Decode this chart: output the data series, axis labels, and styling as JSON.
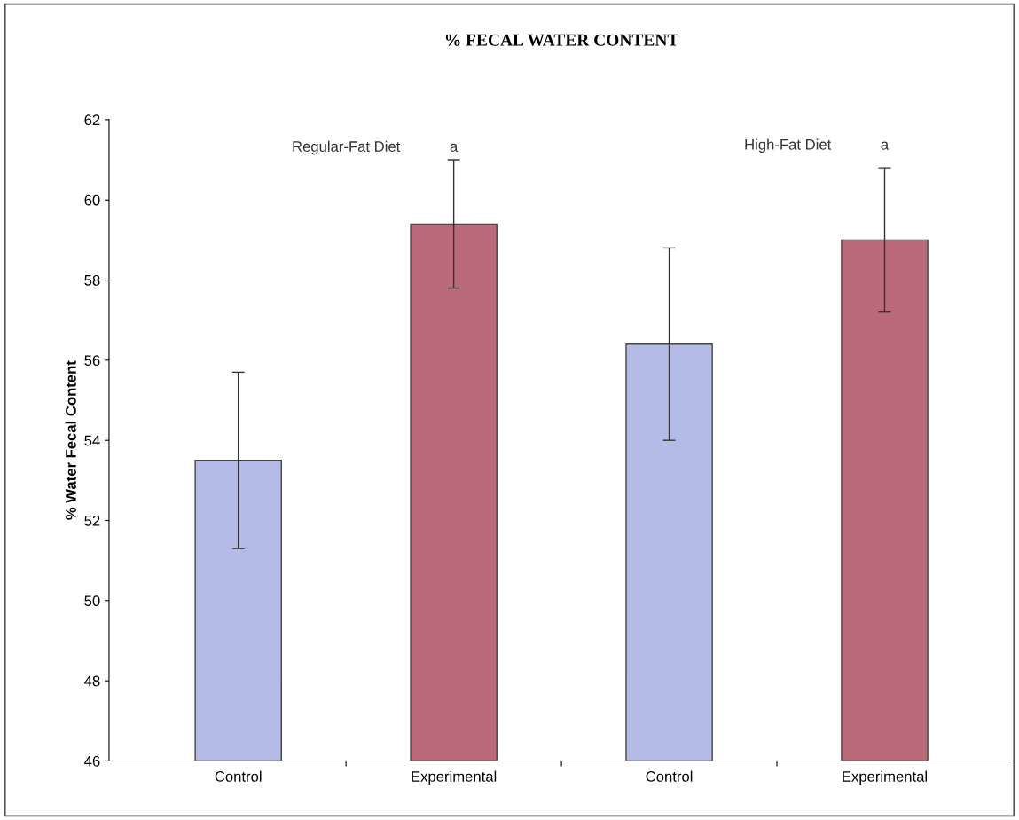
{
  "chart_data": {
    "type": "bar",
    "title": "% FECAL WATER CONTENT",
    "ylabel": "% Water Fecal Content",
    "categories": [
      "Control",
      "Experimental",
      "Control",
      "Experimental"
    ],
    "values": [
      53.5,
      59.4,
      56.4,
      59.0
    ],
    "errors": [
      2.2,
      1.6,
      2.4,
      1.8
    ],
    "colors": [
      "#b4bbe6",
      "#b96b79",
      "#b4bbe6",
      "#b96b79"
    ],
    "ylim": [
      46,
      62
    ],
    "yticks": [
      46,
      48,
      50,
      52,
      54,
      56,
      58,
      60,
      62
    ],
    "annotations": [
      "Regular-Fat Diet",
      "a",
      "High-Fat Diet",
      "a"
    ],
    "grid": false,
    "legend": false
  }
}
